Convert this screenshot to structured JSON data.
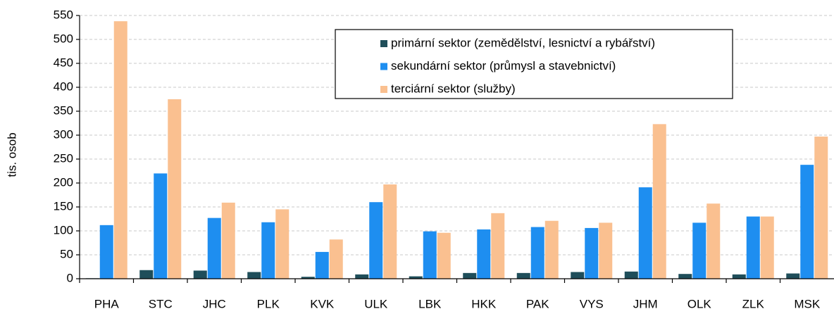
{
  "chart_data": {
    "type": "bar",
    "y_label": "tis. osob",
    "categories": [
      "PHA",
      "STC",
      "JHC",
      "PLK",
      "KVK",
      "ULK",
      "LBK",
      "HKK",
      "PAK",
      "VYS",
      "JHM",
      "OLK",
      "ZLK",
      "MSK"
    ],
    "series": [
      {
        "name": "primární sektor (zemědělství, lesnictví a rybářství)",
        "color": "#1f4e5a",
        "values": [
          1,
          18,
          17,
          14,
          4,
          9,
          5,
          12,
          12,
          14,
          15,
          10,
          9,
          11
        ]
      },
      {
        "name": "sekundární sektor (průmysl a stavebnictví)",
        "color": "#1e8ef0",
        "values": [
          112,
          220,
          127,
          118,
          56,
          160,
          99,
          103,
          108,
          106,
          191,
          117,
          130,
          238
        ]
      },
      {
        "name": "terciární sektor (služby)",
        "color": "#fac090",
        "values": [
          538,
          375,
          159,
          145,
          82,
          197,
          96,
          137,
          121,
          117,
          323,
          157,
          130,
          297
        ]
      }
    ],
    "ylim": [
      0,
      550
    ],
    "yticks": [
      0,
      50,
      100,
      150,
      200,
      250,
      300,
      350,
      400,
      450,
      500,
      550
    ],
    "grid": true,
    "legend": "top-right"
  }
}
